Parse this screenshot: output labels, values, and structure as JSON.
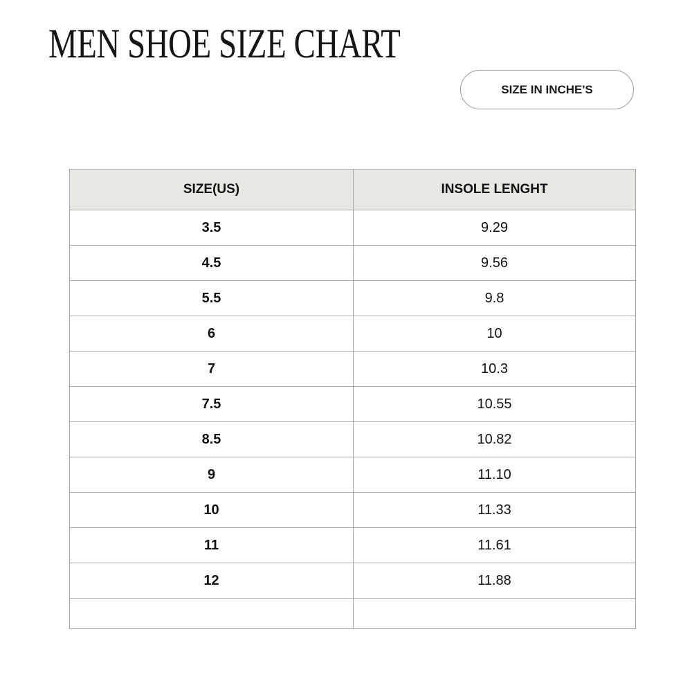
{
  "title": "MEN SHOE SIZE CHART",
  "unit_badge": "SIZE IN INCHE'S",
  "table": {
    "headers": [
      "SIZE(US)",
      "INSOLE LENGHT"
    ],
    "rows": [
      [
        "3.5",
        "9.29"
      ],
      [
        "4.5",
        "9.56"
      ],
      [
        "5.5",
        "9.8"
      ],
      [
        "6",
        "10"
      ],
      [
        "7",
        "10.3"
      ],
      [
        "7.5",
        "10.55"
      ],
      [
        "8.5",
        "10.82"
      ],
      [
        "9",
        "11.10"
      ],
      [
        "10",
        "11.33"
      ],
      [
        "11",
        "11.61"
      ],
      [
        "12",
        "11.88"
      ]
    ]
  },
  "colors": {
    "header_bg": "#e8e7e4",
    "border": "#a8a8a8"
  }
}
